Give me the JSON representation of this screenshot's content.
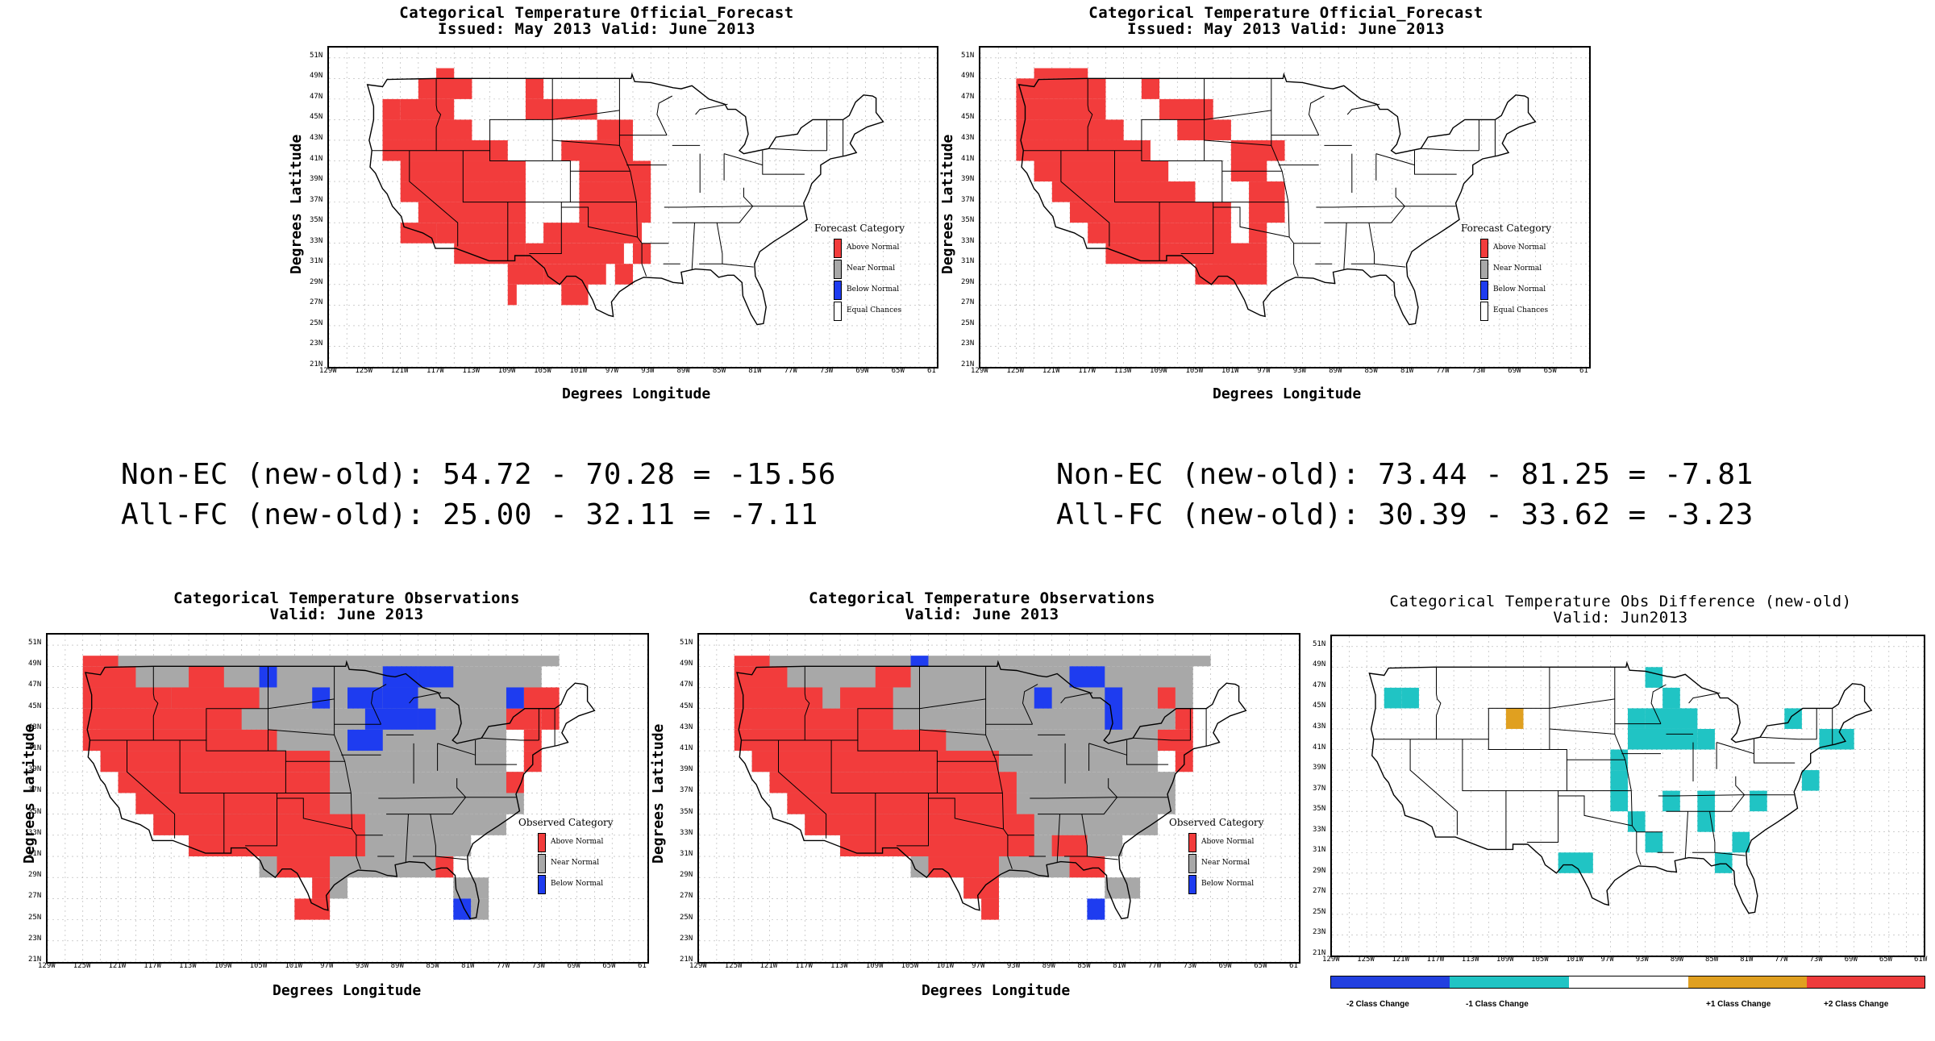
{
  "colors": {
    "above": "#f23c3c",
    "near": "#a8a8a8",
    "below": "#1e3cf0",
    "equal": "#ffffff",
    "minus2": "#2240e0",
    "minus1": "#20c4c4",
    "plus1": "#e0a020",
    "plus2": "#ee3c3c",
    "grid": "#b0b0b0"
  },
  "axes": {
    "lat_ticks": [
      "51N",
      "49N",
      "47N",
      "45N",
      "43N",
      "41N",
      "39N",
      "37N",
      "35N",
      "33N",
      "31N",
      "29N",
      "27N",
      "25N",
      "23N",
      "21N"
    ],
    "lon_ticks": [
      "129W",
      "125W",
      "121W",
      "117W",
      "113W",
      "109W",
      "105W",
      "101W",
      "97W",
      "93W",
      "89W",
      "85W",
      "81W",
      "77W",
      "73W",
      "69W",
      "65W",
      "61"
    ],
    "lon_ticks_diff": [
      "129W",
      "125W",
      "121W",
      "117W",
      "113W",
      "109W",
      "105W",
      "101W",
      "97W",
      "93W",
      "89W",
      "85W",
      "81W",
      "77W",
      "73W",
      "69W",
      "65W",
      "61W"
    ],
    "ylabel": "Degrees Latitude",
    "xlabel": "Degrees Longitude"
  },
  "panels": {
    "fc_left": {
      "title1": "Categorical Temperature Official_Forecast",
      "title2": "Issued: May 2013 Valid: June 2013",
      "legend_title": "Forecast Category",
      "legend": [
        "Above Normal",
        "Near Normal",
        "Below Normal",
        "Equal Chances"
      ],
      "icon": "contiguous-us-map-icon"
    },
    "fc_right": {
      "title1": "Categorical Temperature Official_Forecast",
      "title2": "Issued: May 2013 Valid: June 2013",
      "legend_title": "Forecast Category",
      "legend": [
        "Above Normal",
        "Near Normal",
        "Below Normal",
        "Equal Chances"
      ],
      "icon": "contiguous-us-map-icon"
    },
    "obs_left": {
      "title1": "Categorical Temperature Observations",
      "title2": "Valid: June 2013",
      "legend_title": "Observed Category",
      "legend": [
        "Above Normal",
        "Near Normal",
        "Below Normal"
      ],
      "icon": "contiguous-us-map-icon"
    },
    "obs_mid": {
      "title1": "Categorical Temperature Observations",
      "title2": "Valid: June 2013",
      "legend_title": "Observed Category",
      "legend": [
        "Above Normal",
        "Near Normal",
        "Below Normal"
      ],
      "icon": "contiguous-us-map-icon"
    },
    "diff": {
      "title1": "Categorical Temperature Obs Difference (new-old)",
      "title2": "Valid: Jun2013",
      "legend": [
        "-2 Class Change",
        "-1 Class Change",
        "+1 Class Change",
        "+2 Class Change"
      ],
      "icon": "contiguous-us-map-icon"
    }
  },
  "stats": {
    "left_line1": "Non-EC (new-old): 54.72 - 70.28 = -15.56",
    "left_line2": "All-FC (new-old): 25.00 - 32.11 = -7.11",
    "right_line1": "Non-EC (new-old): 73.44 - 81.25 = -7.81",
    "right_line2": "All-FC (new-old): 30.39 - 33.62 = -3.23"
  }
}
